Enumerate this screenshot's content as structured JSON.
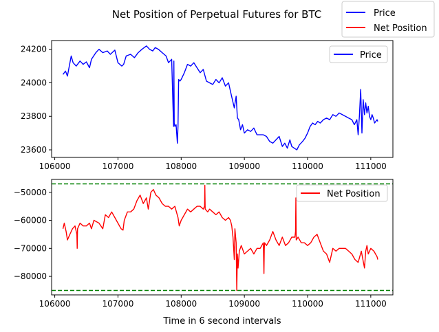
{
  "figure": {
    "title": "Net Position of Perpetual Futures for BTC",
    "xlabel": "Time in 6 second intervals",
    "figure_legend": [
      {
        "label": "Price",
        "color": "#0000ff"
      },
      {
        "label": "Net Position",
        "color": "#ff0000"
      }
    ]
  },
  "chart_data": [
    {
      "type": "line",
      "title": "",
      "xlabel": "",
      "ylabel": "",
      "xlim": [
        105950,
        111350
      ],
      "ylim": [
        23555,
        24252
      ],
      "xticks": [
        106000,
        107000,
        108000,
        109000,
        110000,
        111000
      ],
      "xtick_labels": [
        "106000",
        "107000",
        "108000",
        "109000",
        "110000",
        "111000"
      ],
      "yticks": [
        23600,
        23800,
        24000,
        24200
      ],
      "ytick_labels": [
        "23600",
        "23800",
        "24000",
        "24200"
      ],
      "legend": {
        "position": "upper right",
        "entries": [
          "Price"
        ]
      },
      "grid": false,
      "series": [
        {
          "name": "Price",
          "color": "#0000ff",
          "x": [
            106130,
            106170,
            106200,
            106220,
            106260,
            106290,
            106340,
            106400,
            106450,
            106500,
            106550,
            106580,
            106650,
            106700,
            106760,
            106830,
            106880,
            106950,
            107000,
            107060,
            107090,
            107130,
            107200,
            107260,
            107320,
            107380,
            107450,
            107500,
            107550,
            107590,
            107640,
            107700,
            107760,
            107800,
            107850,
            107870,
            107880,
            107885,
            107890,
            107900,
            107920,
            107940,
            107950,
            107960,
            107980,
            108000,
            108050,
            108100,
            108150,
            108200,
            108250,
            108300,
            108350,
            108400,
            108450,
            108500,
            108550,
            108600,
            108650,
            108700,
            108750,
            108780,
            108810,
            108840,
            108870,
            108890,
            108910,
            108940,
            108970,
            109000,
            109050,
            109100,
            109150,
            109200,
            109250,
            109300,
            109350,
            109400,
            109450,
            109500,
            109550,
            109600,
            109640,
            109680,
            109720,
            109750,
            109790,
            109830,
            109870,
            109920,
            109960,
            110000,
            110040,
            110080,
            110120,
            110160,
            110200,
            110250,
            110300,
            110350,
            110400,
            110450,
            110500,
            110550,
            110600,
            110650,
            110700,
            110740,
            110780,
            110800,
            110820,
            110840,
            110860,
            110880,
            110900,
            110920,
            110940,
            110960,
            110980,
            111000,
            111020,
            111040,
            111060,
            111080,
            111100,
            111110
          ],
          "y": [
            24050,
            24070,
            24040,
            24080,
            24160,
            24120,
            24100,
            24130,
            24110,
            24125,
            24090,
            24140,
            24180,
            24200,
            24180,
            24190,
            24170,
            24195,
            24120,
            24100,
            24110,
            24160,
            24170,
            24150,
            24180,
            24200,
            24220,
            24200,
            24190,
            24210,
            24200,
            24180,
            24160,
            24120,
            24140,
            23860,
            23740,
            24130,
            23760,
            23740,
            23750,
            23640,
            23740,
            24020,
            24010,
            24020,
            24060,
            24110,
            24100,
            24120,
            24090,
            24060,
            24080,
            24010,
            24000,
            23990,
            24020,
            24000,
            24030,
            23980,
            24000,
            23950,
            23900,
            23850,
            23920,
            23790,
            23780,
            23720,
            23750,
            23700,
            23720,
            23710,
            23730,
            23690,
            23690,
            23690,
            23680,
            23650,
            23640,
            23660,
            23680,
            23620,
            23640,
            23610,
            23660,
            23620,
            23610,
            23600,
            23630,
            23650,
            23670,
            23700,
            23740,
            23760,
            23750,
            23770,
            23760,
            23780,
            23790,
            23780,
            23810,
            23800,
            23820,
            23810,
            23800,
            23790,
            23780,
            23750,
            23780,
            23690,
            23800,
            23960,
            23700,
            23900,
            23810,
            23880,
            23820,
            23860,
            23800,
            23780,
            23810,
            23790,
            23760,
            23770,
            23780,
            23770
          ]
        }
      ]
    },
    {
      "type": "line",
      "title": "",
      "xlabel": "Time in 6 second intervals",
      "ylabel": "",
      "xlim": [
        105950,
        111350
      ],
      "ylim": [
        -86600,
        -45400
      ],
      "xticks": [
        106000,
        107000,
        108000,
        109000,
        110000,
        111000
      ],
      "xtick_labels": [
        "106000",
        "107000",
        "108000",
        "109000",
        "110000",
        "111000"
      ],
      "yticks": [
        -80000,
        -70000,
        -60000,
        -50000
      ],
      "ytick_labels": [
        "−80000",
        "−70000",
        "−60000",
        "−50000"
      ],
      "legend": {
        "position": "upper right",
        "entries": [
          "Net Position"
        ]
      },
      "grid": false,
      "hlines": [
        {
          "y": -47000,
          "color": "#008000",
          "style": "dashed"
        },
        {
          "y": -85000,
          "color": "#008000",
          "style": "dashed"
        }
      ],
      "series": [
        {
          "name": "Net Position",
          "color": "#ff0000",
          "x": [
            106130,
            106150,
            106180,
            106200,
            106240,
            106280,
            106320,
            106350,
            106355,
            106360,
            106400,
            106450,
            106500,
            106550,
            106580,
            106620,
            106700,
            106760,
            106800,
            106850,
            106900,
            106950,
            107000,
            107050,
            107080,
            107100,
            107150,
            107200,
            107250,
            107300,
            107350,
            107400,
            107450,
            107480,
            107520,
            107560,
            107600,
            107650,
            107700,
            107750,
            107800,
            107850,
            107900,
            107950,
            107970,
            108000,
            108050,
            108100,
            108150,
            108200,
            108250,
            108300,
            108350,
            108370,
            108375,
            108380,
            108420,
            108450,
            108500,
            108550,
            108600,
            108650,
            108700,
            108750,
            108780,
            108800,
            108820,
            108840,
            108850,
            108870,
            108880,
            108890,
            108900,
            108920,
            108950,
            109000,
            109050,
            109100,
            109150,
            109200,
            109250,
            109300,
            109310,
            109315,
            109320,
            109350,
            109400,
            109450,
            109500,
            109550,
            109600,
            109650,
            109700,
            109750,
            109800,
            109810,
            109815,
            109820,
            109850,
            109900,
            109950,
            110000,
            110050,
            110100,
            110150,
            110200,
            110250,
            110300,
            110350,
            110400,
            110450,
            110500,
            110550,
            110600,
            110650,
            110700,
            110750,
            110800,
            110850,
            110900,
            110920,
            110940,
            110960,
            111000,
            111050,
            111100,
            111110
          ],
          "y": [
            -63000,
            -61000,
            -64000,
            -67000,
            -65000,
            -63000,
            -62000,
            -65000,
            -70000,
            -63000,
            -61000,
            -62000,
            -62000,
            -61000,
            -63000,
            -60000,
            -61000,
            -63000,
            -58000,
            -59000,
            -57000,
            -59000,
            -61000,
            -63000,
            -63500,
            -60000,
            -57000,
            -57000,
            -56000,
            -53000,
            -51000,
            -54000,
            -52000,
            -56000,
            -50000,
            -49000,
            -51000,
            -52000,
            -54000,
            -55000,
            -55000,
            -56000,
            -55000,
            -59000,
            -62000,
            -60000,
            -58000,
            -56000,
            -57000,
            -56000,
            -55000,
            -55000,
            -56000,
            -55000,
            -47500,
            -56000,
            -57000,
            -56000,
            -57000,
            -58000,
            -57000,
            -59000,
            -60000,
            -59000,
            -60000,
            -62000,
            -66000,
            -74000,
            -63000,
            -68000,
            -85000,
            -72000,
            -77000,
            -71000,
            -69000,
            -72000,
            -71000,
            -70000,
            -72000,
            -70000,
            -70000,
            -68000,
            -79000,
            -70000,
            -68000,
            -69000,
            -67000,
            -64000,
            -67000,
            -69000,
            -66000,
            -69000,
            -68000,
            -66000,
            -66000,
            -64000,
            -52000,
            -67000,
            -66000,
            -68000,
            -68000,
            -69000,
            -68000,
            -66000,
            -65000,
            -68000,
            -71000,
            -72000,
            -75000,
            -70000,
            -71000,
            -70000,
            -70000,
            -70000,
            -71000,
            -72000,
            -74000,
            -75000,
            -71000,
            -77000,
            -71000,
            -69000,
            -72000,
            -70000,
            -71000,
            -73000,
            -74000
          ]
        }
      ]
    }
  ]
}
